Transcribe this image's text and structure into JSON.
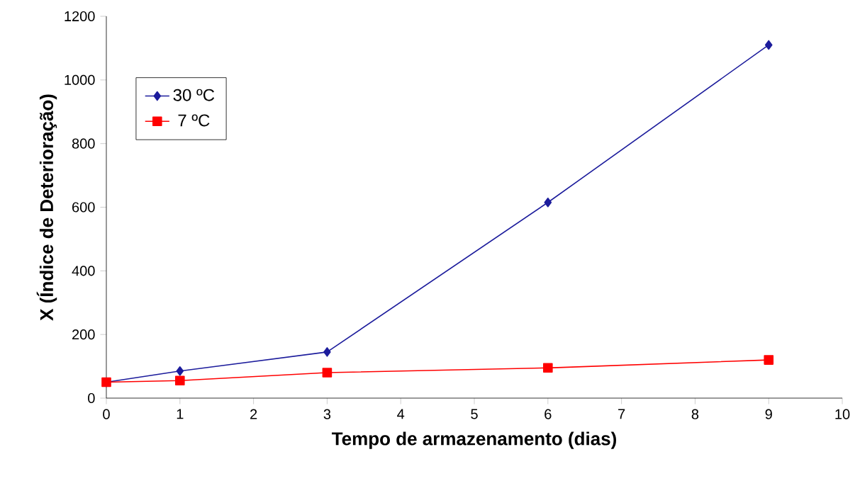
{
  "chart_data": {
    "type": "line",
    "xlabel": "Tempo de armazenamento (dias)",
    "ylabel": "X (Índice de Deterioração)",
    "x": [
      0,
      1,
      3,
      6,
      9
    ],
    "series": [
      {
        "name": "30 ºC",
        "color": "#1c1c9c",
        "marker": "diamond",
        "values": [
          50,
          85,
          145,
          615,
          1110
        ]
      },
      {
        "name": "7 ºC",
        "color": "#ff0000",
        "marker": "square",
        "values": [
          50,
          55,
          80,
          95,
          120
        ]
      }
    ],
    "xlim": [
      0,
      10
    ],
    "xticks": [
      0,
      1,
      2,
      3,
      4,
      5,
      6,
      7,
      8,
      9,
      10
    ],
    "ylim": [
      0,
      1200
    ],
    "yticks": [
      0,
      200,
      400,
      600,
      800,
      1000,
      1200
    ],
    "grid": false,
    "legend": "top left"
  }
}
